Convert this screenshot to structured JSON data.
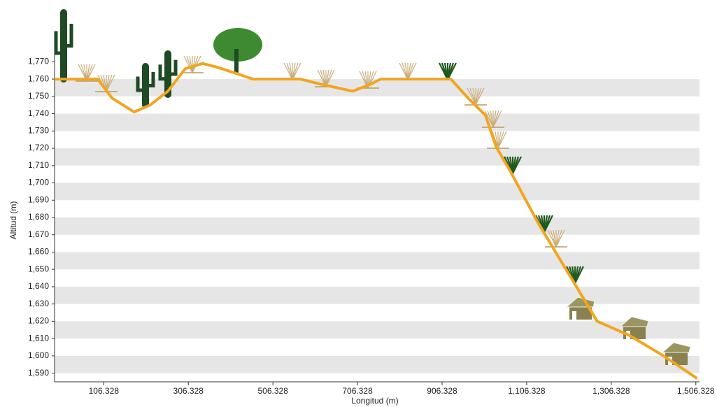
{
  "chart_data": {
    "type": "line",
    "x_label": "Longitud (m)",
    "y_label": "Altitud (m)",
    "x": [
      -10,
      92,
      126,
      178,
      216,
      258,
      299,
      340,
      373,
      423,
      459,
      571,
      621,
      695,
      737,
      761,
      927,
      968,
      1009,
      1034,
      1067,
      1133,
      1182,
      1224,
      1273,
      1348,
      1430,
      1509
    ],
    "values": [
      1760,
      1760,
      1749,
      1741,
      1745,
      1753,
      1766,
      1769,
      1767,
      1763,
      1760,
      1760,
      1757,
      1753,
      1757,
      1760,
      1760,
      1749,
      1739,
      1721,
      1707,
      1677,
      1657,
      1640,
      1620,
      1612,
      1600,
      1587
    ],
    "color": "#f2a51f",
    "xlim": [
      -10,
      1515
    ],
    "ylim": [
      1585,
      1775
    ],
    "xticks": [
      106.328,
      306.328,
      506.328,
      706.328,
      906.328,
      {
        "value": 1106.328,
        "label": "1,106.328"
      },
      {
        "value": 1306.328,
        "label": "1,306.328"
      },
      {
        "value": 1506.328,
        "label": "1,506.328"
      }
    ],
    "yticks": [
      {
        "value": 1590,
        "label": "1,590"
      },
      {
        "value": 1600,
        "label": "1,600"
      },
      {
        "value": 1610,
        "label": "1,610"
      },
      {
        "value": 1620,
        "label": "1,620"
      },
      {
        "value": 1630,
        "label": "1,630"
      },
      {
        "value": 1640,
        "label": "1,640"
      },
      {
        "value": 1650,
        "label": "1,650"
      },
      {
        "value": 1660,
        "label": "1,660"
      },
      {
        "value": 1670,
        "label": "1,670"
      },
      {
        "value": 1680,
        "label": "1,680"
      },
      {
        "value": 1690,
        "label": "1,690"
      },
      {
        "value": 1700,
        "label": "1,700"
      },
      {
        "value": 1710,
        "label": "1,710"
      },
      {
        "value": 1720,
        "label": "1,720"
      },
      {
        "value": 1730,
        "label": "1,730"
      },
      {
        "value": 1740,
        "label": "1,740"
      },
      {
        "value": 1750,
        "label": "1,750"
      },
      {
        "value": 1760,
        "label": "1,760"
      },
      {
        "value": 1770,
        "label": "1,770"
      }
    ],
    "grid": "bands"
  }
}
